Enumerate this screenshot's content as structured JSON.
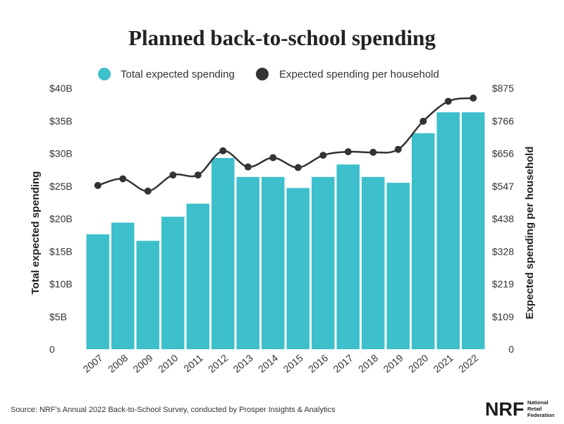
{
  "colors": {
    "bar": "#3dbfcc",
    "line": "#333333",
    "text": "#222222",
    "background": "#ffffff"
  },
  "footer": {
    "source": "Source: NRF's Annual 2022 Back-to-School Survey, conducted by Prosper Insights & Analytics",
    "logo": {
      "main": "NRF",
      "sub_lines": [
        "National",
        "Retail",
        "Federation"
      ]
    }
  },
  "chart_data": {
    "type": "bar",
    "title": "Planned back-to-school spending",
    "legend": {
      "placement": "top-center",
      "entries": [
        "Total expected spending",
        "Expected spending per household"
      ]
    },
    "categories": [
      "2007",
      "2008",
      "2009",
      "2010",
      "2011",
      "2012",
      "2013",
      "2014",
      "2015",
      "2016",
      "2017",
      "2018",
      "2019",
      "2020",
      "2021",
      "2022"
    ],
    "series": [
      {
        "name": "Total expected spending",
        "type": "bar",
        "axis": "left",
        "values": [
          17.6,
          19.4,
          16.6,
          20.3,
          22.3,
          29.3,
          26.4,
          26.4,
          24.7,
          26.4,
          28.3,
          26.4,
          25.5,
          33.1,
          36.3,
          36.3
        ]
      },
      {
        "name": "Expected spending per household",
        "type": "line",
        "axis": "right",
        "values": [
          549,
          571,
          530,
          584,
          584,
          665,
          611,
          642,
          609,
          650,
          662,
          660,
          670,
          764,
          831,
          842
        ]
      }
    ],
    "xlabel": "",
    "ylabel": "Total expected spending",
    "ylabel_right": "Expected spending per household",
    "ylim": [
      0,
      40
    ],
    "ylim_right": [
      0,
      875
    ],
    "yticks": [
      "0",
      "$5B",
      "$10B",
      "$15B",
      "$20B",
      "$25B",
      "$30B",
      "$35B",
      "$40B"
    ],
    "yticks_right": [
      "0",
      "$109",
      "$219",
      "$328",
      "$438",
      "$547",
      "$656",
      "$766",
      "$875"
    ],
    "grid": false
  }
}
